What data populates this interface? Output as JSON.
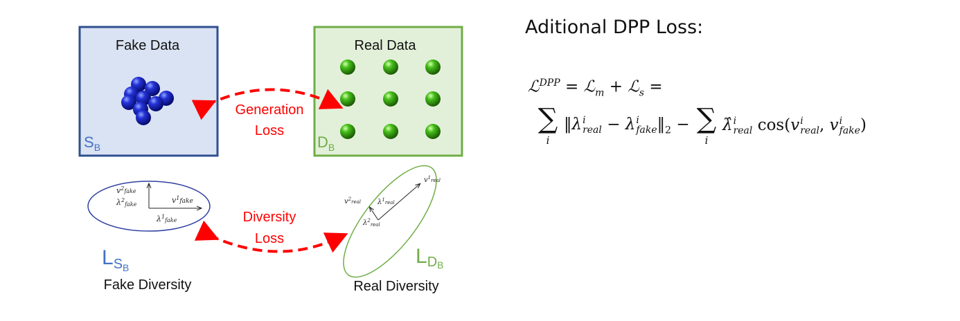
{
  "left_panel": {
    "fake_box": {
      "title": "Fake Data",
      "corner_label": "S",
      "corner_sub": "B",
      "fill": "#dae3f3",
      "stroke": "#2f4f8f"
    },
    "real_box": {
      "title": "Real Data",
      "corner_label": "D",
      "corner_sub": "B",
      "fill": "#e2f0d9",
      "stroke": "#70ad47"
    },
    "generation_loss": {
      "line1": "Generation",
      "line2": "Loss",
      "color": "#ff0000"
    },
    "diversity_loss": {
      "line1": "Diversity",
      "line2": "Loss",
      "color": "#ff0000"
    },
    "fake_ellipse": {
      "stroke": "#2f3fa0",
      "v1": "v",
      "v1_sup": "1",
      "v1_sub": "fake",
      "v2": "v",
      "v2_sup": "2",
      "v2_sub": "fake",
      "l1": "λ",
      "l1_sup": "1",
      "l1_sub": "fake",
      "l2": "λ",
      "l2_sup": "2",
      "l2_sub": "fake"
    },
    "real_ellipse": {
      "stroke": "#70ad47",
      "v1": "v",
      "v1_sup": "1",
      "v1_sub": "real",
      "v2": "v",
      "v2_sup": "2",
      "v2_sub": "real",
      "l1": "λ",
      "l1_sup": "1",
      "l1_sub": "real",
      "l2": "λ",
      "l2_sup": "2",
      "l2_sub": "real"
    },
    "fake_diversity": {
      "symbol": "L",
      "sub": "S",
      "subsub": "B",
      "caption": "Fake Diversity",
      "color": "#4472c4"
    },
    "real_diversity": {
      "symbol": "L",
      "sub": "D",
      "subsub": "B",
      "caption": "Real Diversity",
      "color": "#70ad47"
    }
  },
  "right_panel": {
    "heading": "Aditional DPP Loss:",
    "formula": {
      "lhs": "ℒ",
      "lhs_sup": "DPP",
      "eq": "=",
      "lm": "ℒ",
      "lm_sub": "m",
      "plus": "+",
      "ls": "ℒ",
      "ls_sub": "s",
      "eq2": "=",
      "sum_symbol": "∑",
      "sum_index": "i",
      "norm_open": "‖",
      "lam_real": "λ",
      "real": "real",
      "i": "i",
      "minus": "−",
      "lam_fake": "λ",
      "fake": "fake",
      "norm_close": "‖",
      "norm_sub": "2",
      "minus2": "−",
      "lam_hat": "λ̂",
      "cos": "cos(",
      "v": "v",
      "comma": ",",
      "close": ")"
    }
  }
}
